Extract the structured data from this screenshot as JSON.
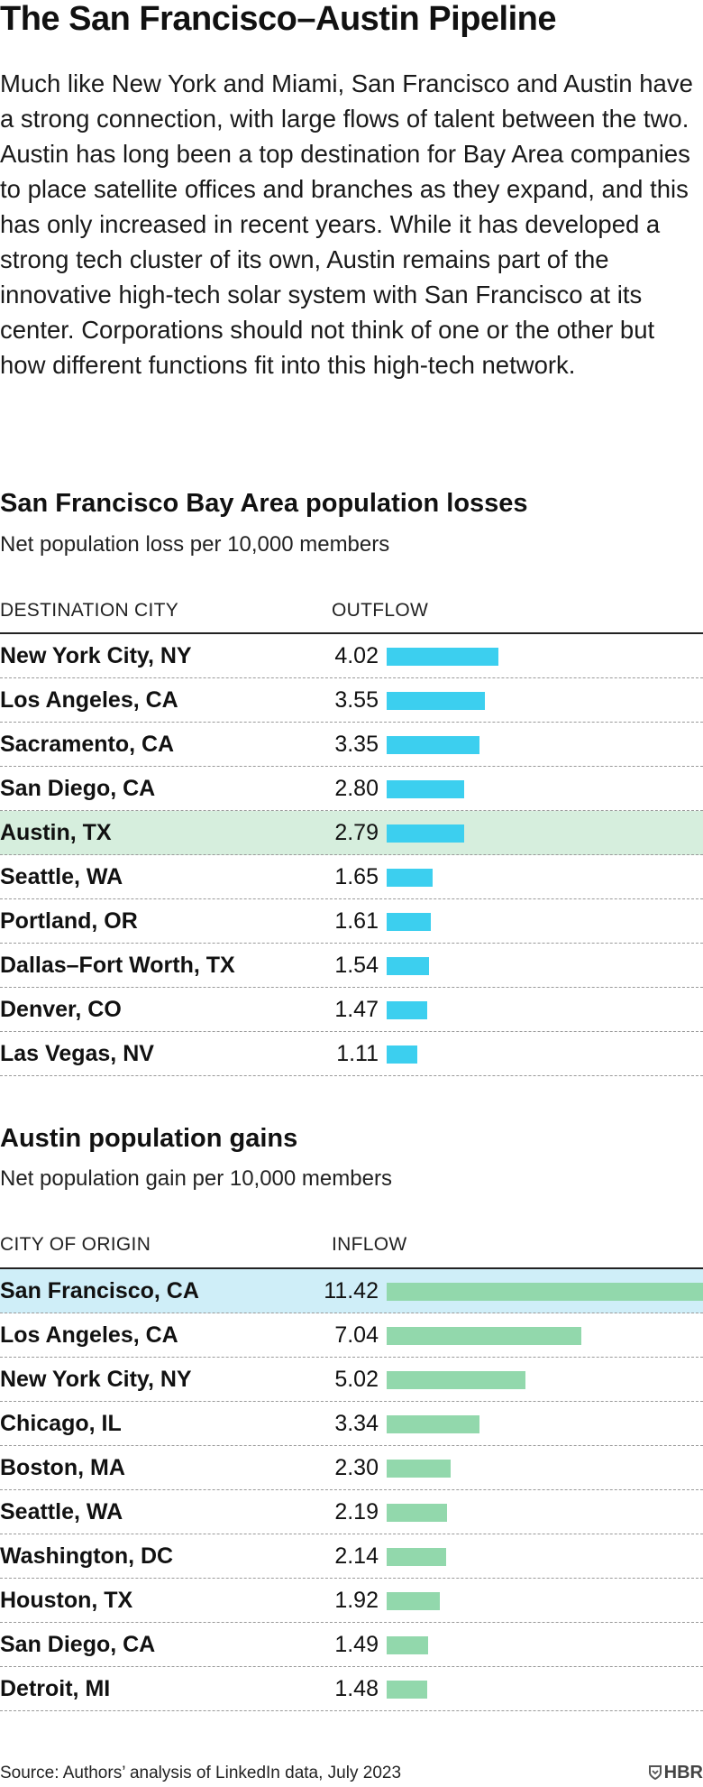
{
  "title": "The San Francisco–Austin Pipeline",
  "intro": "Much like New York and Miami, San Francisco and Austin have a strong connection, with large flows of talent between the two. Austin has long been a top destination for Bay Area companies to place satellite offices and branches as they expand, and this has only increased in recent years. While it has developed a strong tech cluster of its own, Austin remains part of the innovative high-tech solar system with San Francisco at its center. Corporations should not think of one or the other but how different functions fit into this high-tech network.",
  "colors": {
    "losses_bar": "#3ccfef",
    "gains_bar": "#92d8ac",
    "highlight_green": "#d6eedd",
    "highlight_blue": "#cfeef8"
  },
  "chart_data": [
    {
      "type": "bar",
      "title": "San Francisco Bay Area population losses",
      "subtitle": "Net population loss per 10,000 members",
      "category_header": "DESTINATION CITY",
      "value_header": "OUTFLOW",
      "categories": [
        "New York City, NY",
        "Los Angeles, CA",
        "Sacramento, CA",
        "San Diego, CA",
        "Austin, TX",
        "Seattle, WA",
        "Portland, OR",
        "Dallas–Fort Worth, TX",
        "Denver, CO",
        "Las Vegas, NV"
      ],
      "values": [
        4.02,
        3.55,
        3.35,
        2.8,
        2.79,
        1.65,
        1.61,
        1.54,
        1.47,
        1.11
      ],
      "value_labels": [
        "4.02",
        "3.55",
        "3.35",
        "2.80",
        "2.79",
        "1.65",
        "1.61",
        "1.54",
        "1.47",
        "1.11"
      ],
      "highlight": "Austin, TX",
      "xlim": [
        0,
        11.42
      ]
    },
    {
      "type": "bar",
      "title": "Austin population gains",
      "subtitle": "Net population gain per 10,000 members",
      "category_header": "CITY OF ORIGIN",
      "value_header": "INFLOW",
      "categories": [
        "San Francisco, CA",
        "Los Angeles, CA",
        "New York City, NY",
        "Chicago, IL",
        "Boston, MA",
        "Seattle, WA",
        "Washington, DC",
        "Houston, TX",
        "San Diego, CA",
        "Detroit, MI"
      ],
      "values": [
        11.42,
        7.04,
        5.02,
        3.34,
        2.3,
        2.19,
        2.14,
        1.92,
        1.49,
        1.48
      ],
      "value_labels": [
        "11.42",
        "7.04",
        "5.02",
        "3.34",
        "2.30",
        "2.19",
        "2.14",
        "1.92",
        "1.49",
        "1.48"
      ],
      "highlight": "San Francisco, CA",
      "xlim": [
        0,
        11.42
      ]
    }
  ],
  "source": "Source: Authors’ analysis of LinkedIn data, July 2023",
  "logo": {
    "icon": "hbr-shield-icon",
    "text": "HBR"
  }
}
